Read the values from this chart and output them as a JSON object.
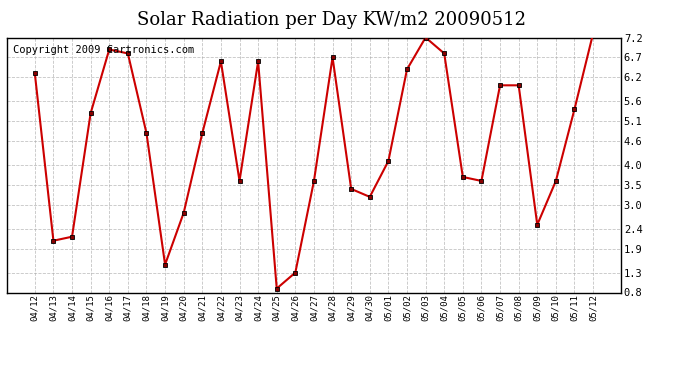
{
  "title": "Solar Radiation per Day KW/m2 20090512",
  "copyright": "Copyright 2009 Cartronics.com",
  "dates": [
    "04/12",
    "04/13",
    "04/14",
    "04/15",
    "04/16",
    "04/17",
    "04/18",
    "04/19",
    "04/20",
    "04/21",
    "04/22",
    "04/23",
    "04/24",
    "04/25",
    "04/26",
    "04/27",
    "04/28",
    "04/29",
    "04/30",
    "05/01",
    "05/02",
    "05/03",
    "05/04",
    "05/05",
    "05/06",
    "05/07",
    "05/08",
    "05/09",
    "05/10",
    "05/11",
    "05/12"
  ],
  "values": [
    6.3,
    2.1,
    2.2,
    5.3,
    6.9,
    6.8,
    4.8,
    1.5,
    2.8,
    4.8,
    6.6,
    3.6,
    6.6,
    0.9,
    1.3,
    3.6,
    6.7,
    3.4,
    3.2,
    4.1,
    6.4,
    7.2,
    6.8,
    3.7,
    3.6,
    6.0,
    6.0,
    2.5,
    3.6,
    5.4,
    7.3
  ],
  "line_color": "#cc0000",
  "marker_color": "#880000",
  "bg_color": "#ffffff",
  "plot_bg_color": "#ffffff",
  "grid_color": "#aaaaaa",
  "ylim": [
    0.8,
    7.2
  ],
  "yticks": [
    0.8,
    1.3,
    1.9,
    2.4,
    3.0,
    3.5,
    4.0,
    4.6,
    5.1,
    5.6,
    6.2,
    6.7,
    7.2
  ],
  "title_fontsize": 13,
  "copyright_fontsize": 7.5
}
